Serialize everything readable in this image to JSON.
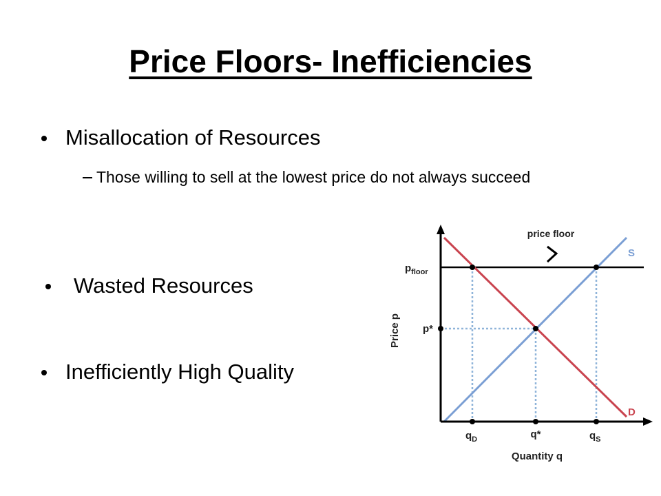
{
  "header": {
    "title": "Price Floors- Inefficiencies"
  },
  "bullets": [
    {
      "text": "Misallocation of Resources",
      "sub": [
        "Those willing to sell at the lowest price do not always succeed"
      ]
    },
    {
      "text": "Wasted Resources"
    },
    {
      "text": "Inefficiently High Quality"
    }
  ],
  "diagram": {
    "callout": "price floor",
    "supply_label": "S",
    "demand_label": "D",
    "p_floor": {
      "main": "p",
      "sub": "floor"
    },
    "p_star": "p*",
    "y_axis_title": "Price p",
    "q_d": {
      "main": "q",
      "sub": "D"
    },
    "q_star": "q*",
    "q_s": {
      "main": "q",
      "sub": "S"
    },
    "x_axis_title": "Quantity q"
  }
}
